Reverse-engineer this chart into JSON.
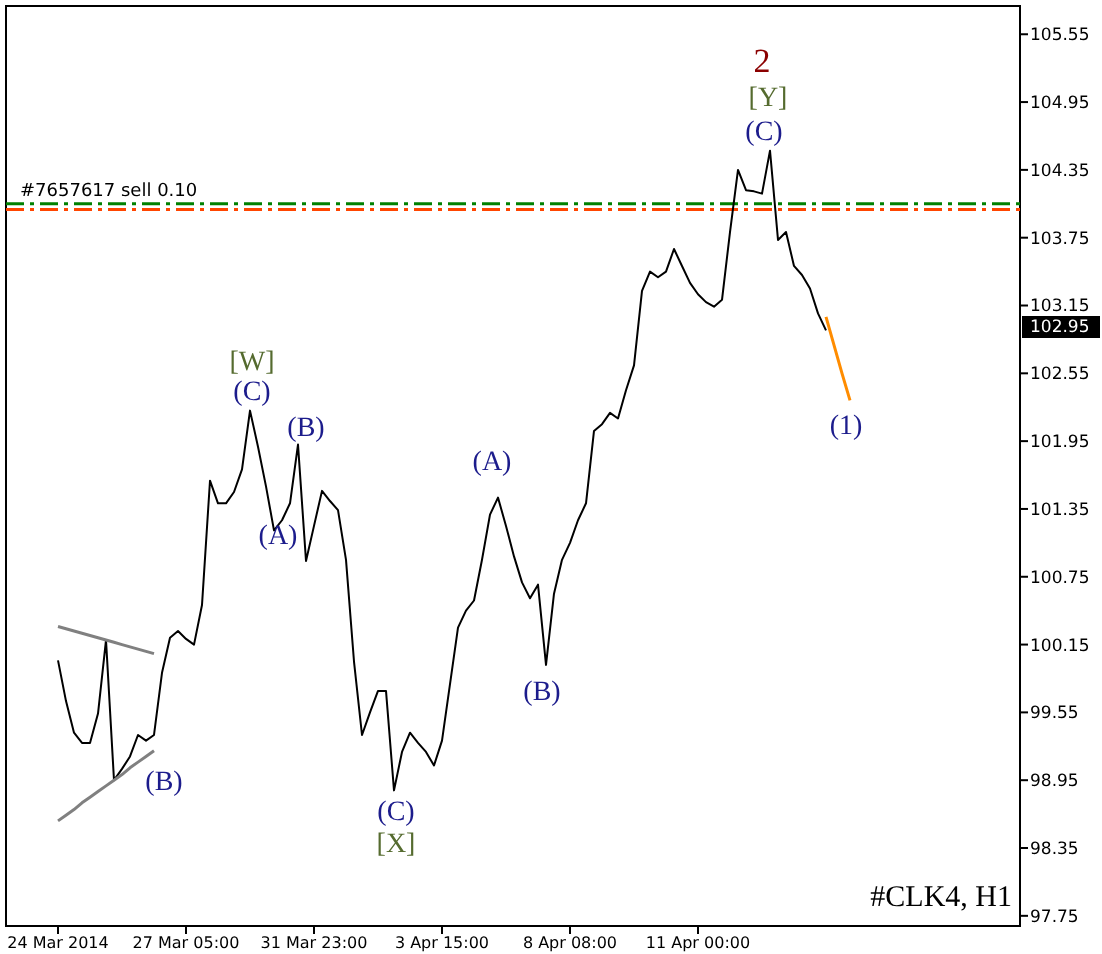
{
  "chart_data": {
    "type": "line",
    "title": "#CLK4, H1",
    "categories": [
      "24 Mar 2014",
      null,
      null,
      null,
      null,
      null,
      null,
      null,
      null,
      null,
      null,
      null,
      null,
      null,
      null,
      null,
      "27 Mar 05:00",
      null,
      null,
      null,
      null,
      null,
      null,
      null,
      null,
      null,
      null,
      null,
      null,
      null,
      null,
      null,
      "31 Mar 23:00",
      null,
      null,
      null,
      null,
      null,
      null,
      null,
      null,
      null,
      null,
      null,
      null,
      null,
      null,
      null,
      "3 Apr 15:00",
      null,
      null,
      null,
      null,
      null,
      null,
      null,
      null,
      null,
      null,
      null,
      null,
      null,
      null,
      null,
      "8 Apr 08:00",
      null,
      null,
      null,
      null,
      null,
      null,
      null,
      null,
      null,
      null,
      null,
      null,
      null,
      null,
      null,
      "11 Apr 00:00",
      null,
      null,
      null,
      null,
      null,
      null,
      null,
      null,
      null,
      null,
      null,
      null,
      null,
      null,
      null,
      null,
      null,
      null,
      null
    ],
    "ylim": [
      97.66,
      105.8
    ],
    "yticks": [
      97.75,
      98.35,
      98.95,
      99.55,
      100.15,
      100.75,
      101.35,
      101.95,
      102.55,
      103.15,
      103.75,
      104.35,
      104.95,
      105.55
    ],
    "series": [
      {
        "color": "#000000",
        "values": [
          100.01,
          99.65,
          99.37,
          99.28,
          99.28,
          99.54,
          100.19,
          98.95,
          99.05,
          99.16,
          99.35,
          99.3,
          99.35,
          99.9,
          100.21,
          100.27,
          100.2,
          100.15,
          100.5,
          101.6,
          101.4,
          101.4,
          101.5,
          101.7,
          102.22,
          101.9,
          101.55,
          101.16,
          101.25,
          101.4,
          101.92,
          100.89,
          101.2,
          101.51,
          101.42,
          101.34,
          100.9,
          100.0,
          99.35,
          99.55,
          99.74,
          99.74,
          98.86,
          99.2,
          99.37,
          99.28,
          99.2,
          99.08,
          99.3,
          99.8,
          100.3,
          100.45,
          100.54,
          100.9,
          101.3,
          101.45,
          101.2,
          100.93,
          100.7,
          100.56,
          100.68,
          99.97,
          100.6,
          100.9,
          101.05,
          101.25,
          101.4,
          102.04,
          102.1,
          102.2,
          102.15,
          102.4,
          102.62,
          103.28,
          103.45,
          103.4,
          103.45,
          103.65,
          103.5,
          103.35,
          103.25,
          103.18,
          103.14,
          103.2,
          103.8,
          104.35,
          104.17,
          104.16,
          104.14,
          104.52,
          103.73,
          103.8,
          103.5,
          103.42,
          103.3,
          103.08,
          102.93,
          null,
          null,
          null
        ]
      },
      {
        "color": "#808080",
        "values": [
          100.31,
          100.29,
          100.27,
          100.25,
          100.23,
          100.21,
          100.19,
          100.17,
          100.15,
          100.13,
          100.11,
          100.09,
          100.07,
          null,
          null,
          null,
          null,
          null,
          null,
          null,
          null,
          null,
          null,
          null,
          null,
          null,
          null,
          null,
          null,
          null,
          null,
          null,
          null,
          null,
          null,
          null,
          null,
          null,
          null,
          null,
          null,
          null,
          null,
          null,
          null,
          null,
          null,
          null,
          null,
          null,
          null,
          null,
          null,
          null,
          null,
          null,
          null,
          null,
          null,
          null,
          null,
          null,
          null,
          null,
          null,
          null,
          null,
          null,
          null,
          null,
          null,
          null,
          null,
          null,
          null,
          null,
          null,
          null,
          null,
          null,
          null,
          null,
          null,
          null,
          null,
          null,
          null,
          null,
          null,
          null,
          null,
          null,
          null,
          null,
          null,
          null,
          null,
          null,
          null,
          null
        ]
      },
      {
        "color": "#808080",
        "values": [
          98.59,
          98.64,
          98.69,
          98.75,
          98.8,
          98.85,
          98.9,
          98.95,
          99.0,
          99.06,
          99.11,
          99.16,
          99.21,
          null,
          null,
          null,
          null,
          null,
          null,
          null,
          null,
          null,
          null,
          null,
          null,
          null,
          null,
          null,
          null,
          null,
          null,
          null,
          null,
          null,
          null,
          null,
          null,
          null,
          null,
          null,
          null,
          null,
          null,
          null,
          null,
          null,
          null,
          null,
          null,
          null,
          null,
          null,
          null,
          null,
          null,
          null,
          null,
          null,
          null,
          null,
          null,
          null,
          null,
          null,
          null,
          null,
          null,
          null,
          null,
          null,
          null,
          null,
          null,
          null,
          null,
          null,
          null,
          null,
          null,
          null,
          null,
          null,
          null,
          null,
          null,
          null,
          null,
          null,
          null,
          null,
          null,
          null,
          null,
          null,
          null,
          null,
          null,
          null,
          null,
          null
        ]
      },
      {
        "color": "#ff8c00",
        "values": [
          null,
          null,
          null,
          null,
          null,
          null,
          null,
          null,
          null,
          null,
          null,
          null,
          null,
          null,
          null,
          null,
          null,
          null,
          null,
          null,
          null,
          null,
          null,
          null,
          null,
          null,
          null,
          null,
          null,
          null,
          null,
          null,
          null,
          null,
          null,
          null,
          null,
          null,
          null,
          null,
          null,
          null,
          null,
          null,
          null,
          null,
          null,
          null,
          null,
          null,
          null,
          null,
          null,
          null,
          null,
          null,
          null,
          null,
          null,
          null,
          null,
          null,
          null,
          null,
          null,
          null,
          null,
          null,
          null,
          null,
          null,
          null,
          null,
          null,
          null,
          null,
          null,
          null,
          null,
          null,
          null,
          null,
          null,
          null,
          null,
          null,
          null,
          null,
          null,
          null,
          null,
          null,
          null,
          null,
          null,
          null,
          103.05,
          102.8,
          102.55,
          102.31
        ]
      }
    ],
    "ref_lines": [
      {
        "axis": "y",
        "value": 104.05,
        "label": "#7657617 sell 0.10",
        "color": "#008000",
        "line_style": "dashed"
      },
      {
        "axis": "y",
        "value": 104.0,
        "color": "#ff4500",
        "line_style": "dashed"
      }
    ],
    "annotations": [
      "2",
      "[Y]",
      "(C)",
      "[W]",
      "(C)",
      "(B)",
      "(A)",
      "(A)",
      "(B)",
      "(B)",
      "(C)",
      "[X]",
      "(1)",
      "102.95"
    ]
  }
}
